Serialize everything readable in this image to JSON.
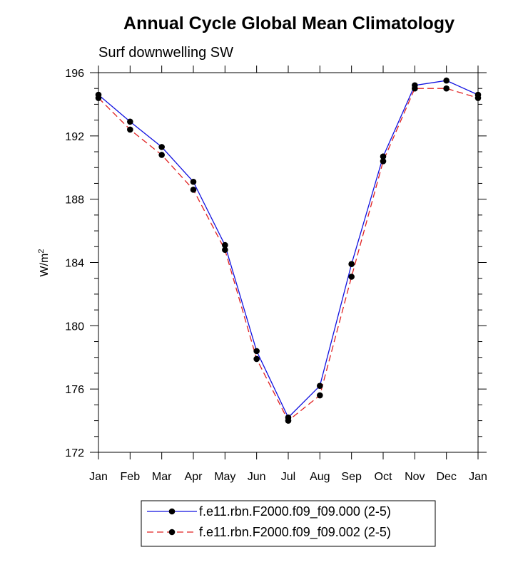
{
  "chart_data": {
    "type": "line",
    "title": "Annual Cycle Global Mean Climatology",
    "subtitle": "Surf downwelling SW",
    "ylabel_base": "W/m",
    "ylabel_sup": "2",
    "xlabel": "",
    "categories": [
      "Jan",
      "Feb",
      "Mar",
      "Apr",
      "May",
      "Jun",
      "Jul",
      "Aug",
      "Sep",
      "Oct",
      "Nov",
      "Dec",
      "Jan"
    ],
    "ylim": [
      172,
      196
    ],
    "yticks": [
      172,
      176,
      180,
      184,
      188,
      192,
      196
    ],
    "ytick_labels": [
      "172",
      "176",
      "180",
      "184",
      "188",
      "192",
      "196"
    ],
    "series": [
      {
        "name": "f.e11.rbn.F2000.f09_f09.000 (2-5)",
        "color": "#1010e0",
        "dash": "solid",
        "values": [
          194.6,
          192.9,
          191.3,
          189.1,
          185.1,
          178.4,
          174.2,
          176.2,
          183.9,
          190.7,
          195.2,
          195.5,
          194.6
        ]
      },
      {
        "name": "f.e11.rbn.F2000.f09_f09.002 (2-5)",
        "color": "#e02020",
        "dash": "dashed",
        "values": [
          194.4,
          192.4,
          190.8,
          188.6,
          184.8,
          177.9,
          174.0,
          175.6,
          183.1,
          190.4,
          195.0,
          195.0,
          194.4
        ]
      }
    ]
  }
}
